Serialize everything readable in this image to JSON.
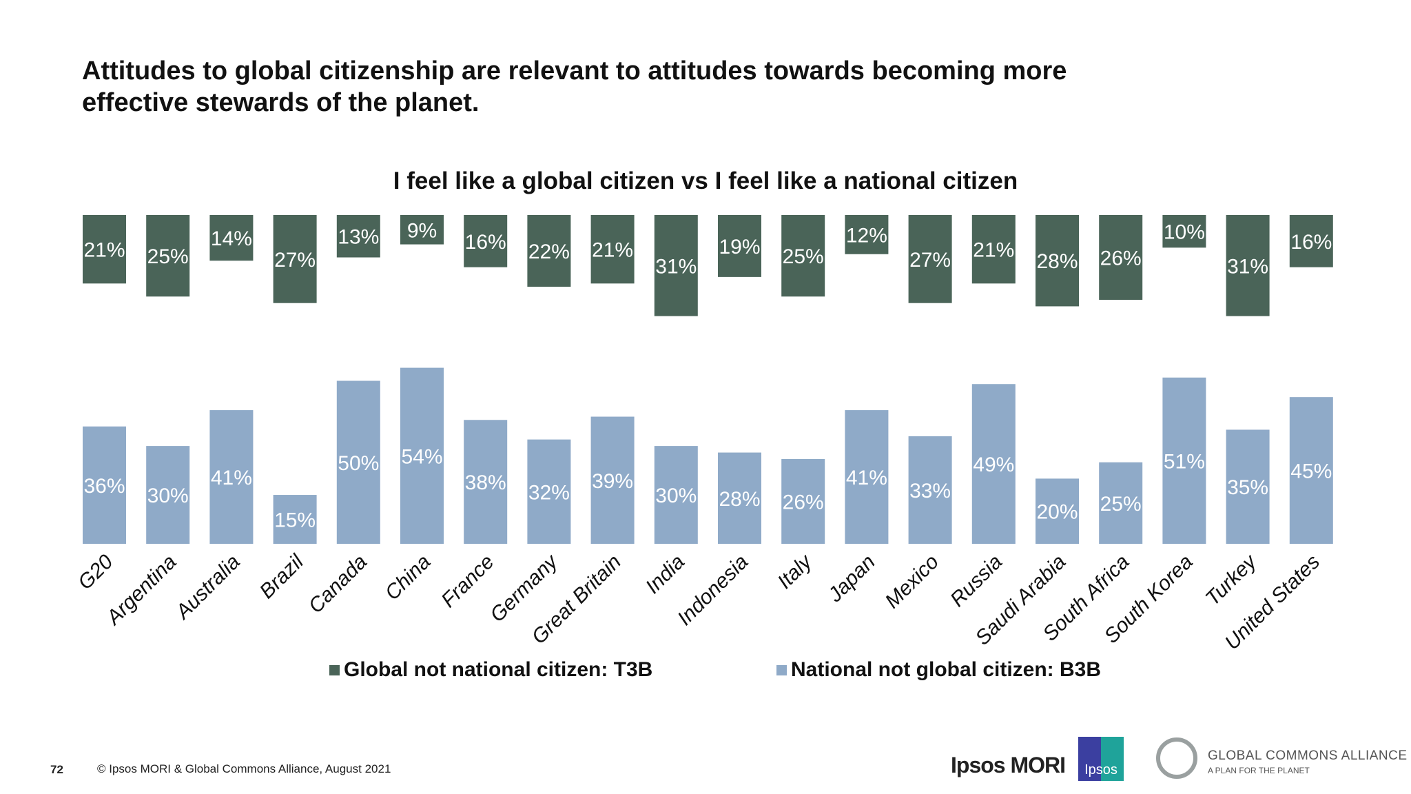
{
  "slide": {
    "title": "Attitudes to global citizenship are relevant to attitudes towards becoming more effective stewards of the planet.",
    "page_number": "72",
    "copyright": "© Ipsos MORI & Global Commons Alliance, August 2021",
    "logos": {
      "ipsos_mori": "Ipsos MORI",
      "ipsos": "Ipsos",
      "gca": "GLOBAL COMMONS ALLIANCE",
      "gca_tagline": "A PLAN FOR THE PLANET"
    }
  },
  "chart_data": {
    "type": "bar",
    "title": "I feel like a global citizen vs I feel like a national citizen",
    "categories": [
      "G20",
      "Argentina",
      "Australia",
      "Brazil",
      "Canada",
      "China",
      "France",
      "Germany",
      "Great Britain",
      "India",
      "Indonesia",
      "Italy",
      "Japan",
      "Mexico",
      "Russia",
      "Saudi Arabia",
      "South Africa",
      "South Korea",
      "Turkey",
      "United States"
    ],
    "series": [
      {
        "name": "Global not national citizen: T3B",
        "color": "#4a6458",
        "direction": "down-from-top",
        "values": [
          21,
          25,
          14,
          27,
          13,
          9,
          16,
          22,
          21,
          31,
          19,
          25,
          12,
          27,
          21,
          28,
          26,
          10,
          31,
          16
        ]
      },
      {
        "name": "National not global citizen: B3B",
        "color": "#8faac8",
        "direction": "up-from-baseline",
        "values": [
          36,
          30,
          41,
          15,
          50,
          54,
          38,
          32,
          39,
          30,
          28,
          26,
          41,
          33,
          49,
          20,
          25,
          51,
          35,
          45
        ]
      }
    ],
    "value_format": "%",
    "legend_position": "bottom",
    "grid": false
  }
}
